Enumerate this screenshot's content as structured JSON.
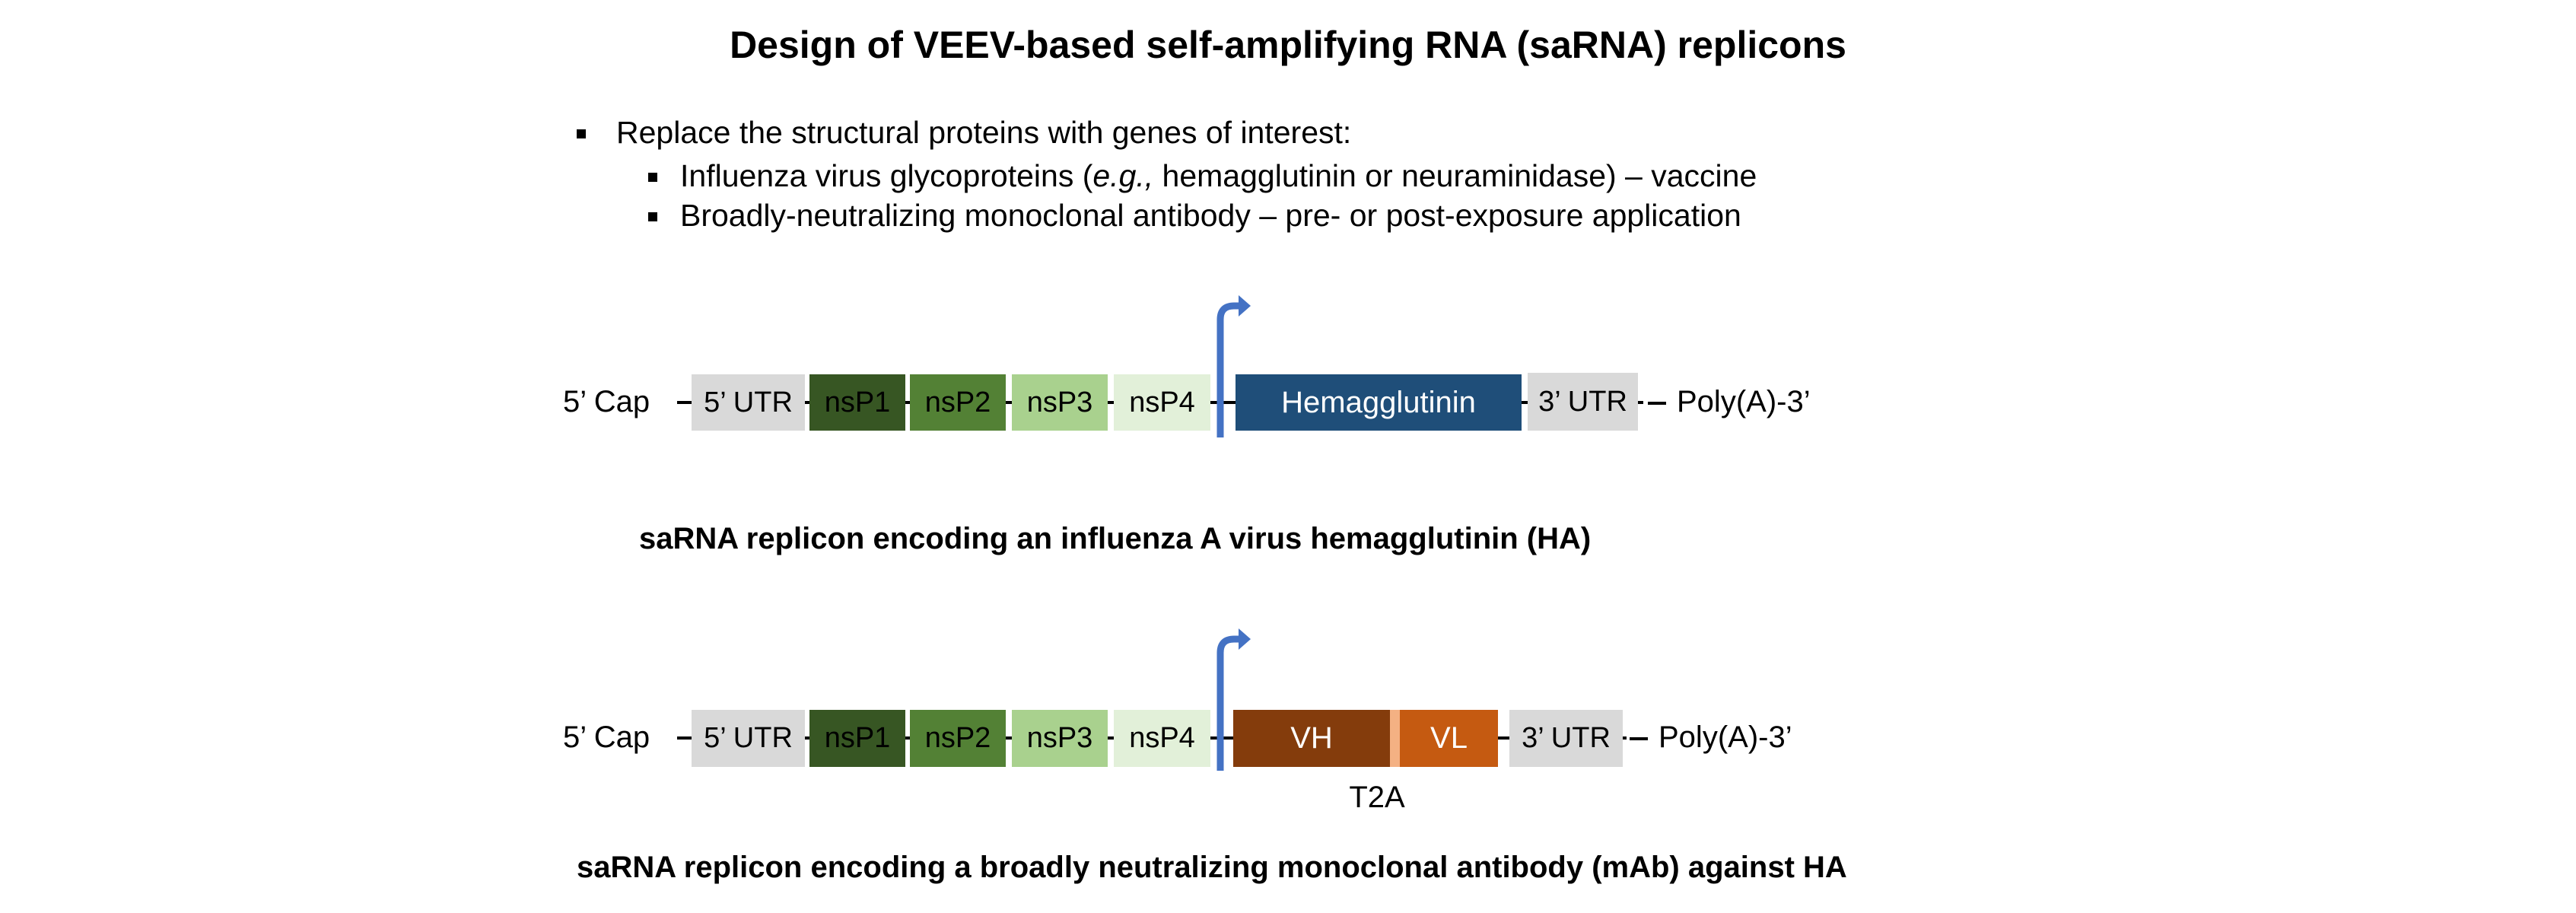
{
  "title": "Design of VEEV-based self-amplifying RNA (saRNA) replicons",
  "bullets": {
    "main": "Replace the structural proteins with genes of interest:",
    "sub1_pre": "Influenza virus glycoproteins (",
    "sub1_italic": "e.g.,",
    "sub1_post": " hemagglutinin or neuraminidase) – vaccine",
    "sub2": "Broadly-neutralizing monoclonal antibody – pre- or post-exposure application"
  },
  "colors": {
    "utr": "#d9d9d9",
    "nsP1": "#375623",
    "nsP2": "#538135",
    "nsP3": "#a9d18e",
    "nsP4": "#e2f0d9",
    "hemagglutinin": "#1f4e79",
    "vh": "#843c0c",
    "vl": "#c55a11",
    "t2a": "#f4b183",
    "promoter_arrow": "#4472c4"
  },
  "diagram1": {
    "cap": "5’ Cap",
    "utr5": "5’ UTR",
    "nsp1": "nsP1",
    "nsp2": "nsP2",
    "nsp3": "nsP3",
    "nsp4": "nsP4",
    "gene": "Hemagglutinin",
    "utr3": "3’ UTR",
    "polya": "Poly(A)-3’",
    "caption": "saRNA replicon encoding an influenza A virus hemagglutinin (HA)"
  },
  "diagram2": {
    "cap": "5’ Cap",
    "utr5": "5’ UTR",
    "nsp1": "nsP1",
    "nsp2": "nsP2",
    "nsp3": "nsP3",
    "nsp4": "nsP4",
    "vh": "VH",
    "vl": "VL",
    "t2a": "T2A",
    "utr3": "3’ UTR",
    "polya": "Poly(A)-3’",
    "caption": "saRNA replicon encoding a broadly neutralizing monoclonal antibody (mAb) against HA"
  }
}
